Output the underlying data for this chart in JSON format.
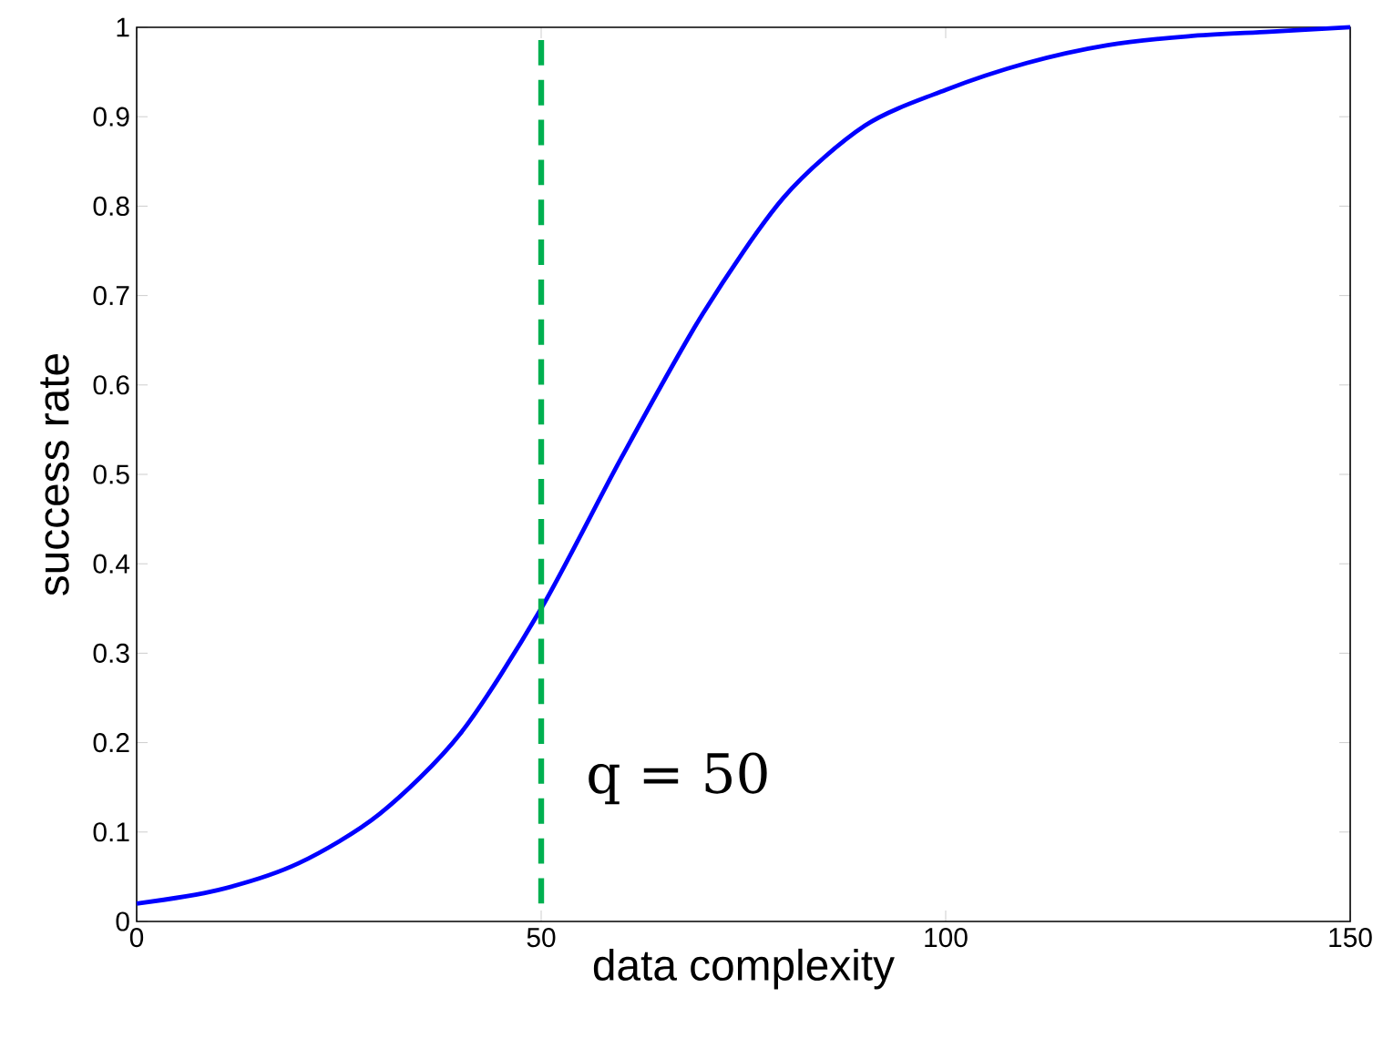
{
  "chart_data": {
    "type": "line",
    "xlabel": "data complexity",
    "ylabel": "success rate",
    "x": [
      0,
      10,
      20,
      30,
      40,
      50,
      60,
      70,
      80,
      90,
      100,
      110,
      120,
      130,
      140,
      150
    ],
    "series": [
      {
        "color": "#0000ff",
        "values": [
          0.02,
          0.035,
          0.065,
          0.12,
          0.21,
          0.35,
          0.52,
          0.68,
          0.81,
          0.89,
          0.93,
          0.96,
          0.98,
          0.99,
          0.995,
          1.0
        ]
      }
    ],
    "xlim": [
      0,
      150
    ],
    "ylim": [
      0,
      1
    ],
    "xticks": [
      0,
      50,
      100,
      150
    ],
    "yticks": [
      0,
      0.1,
      0.2,
      0.3,
      0.4,
      0.5,
      0.6,
      0.7,
      0.8,
      0.9,
      1
    ],
    "ref_lines": [
      {
        "axis": "x",
        "value": 50,
        "color": "#00b050",
        "line_style": "dashed"
      }
    ],
    "annotations": [
      "q = 50"
    ],
    "line_style": "solid",
    "marker": "none"
  }
}
